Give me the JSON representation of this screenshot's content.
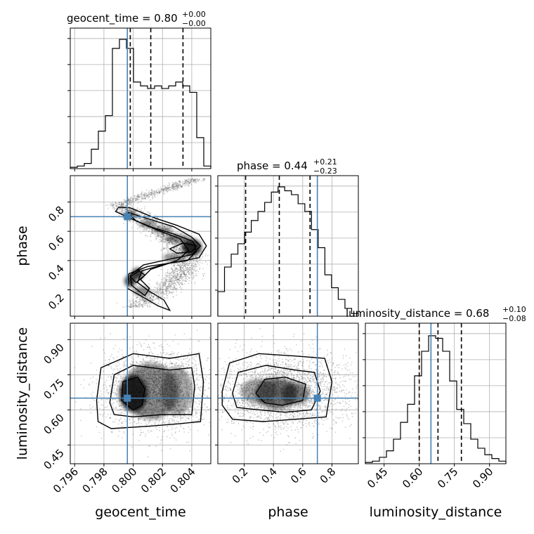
{
  "chart_data": {
    "type": "corner",
    "parameters": [
      "geocent_time",
      "phase",
      "luminosity_distance"
    ],
    "truth_color": "#4682b4",
    "grid": true,
    "truths": {
      "geocent_time": 0.7996,
      "phase": 0.7,
      "luminosity_distance": 0.65
    },
    "titles": {
      "geocent_time": {
        "name": "geocent_time",
        "median": "0.80",
        "plus": "+0.00",
        "minus": "−0.00"
      },
      "phase": {
        "name": "phase",
        "median": "0.44",
        "plus": "+0.21",
        "minus": "−0.23"
      },
      "luminosity_distance": {
        "name": "luminosity_distance",
        "median": "0.68",
        "plus": "+0.10",
        "minus": "−0.08"
      }
    },
    "axis_labels": {
      "x": [
        "geocent_time",
        "phase",
        "luminosity_distance"
      ],
      "y": [
        "phase",
        "luminosity_distance"
      ]
    },
    "ranges": {
      "geocent_time": [
        0.7957,
        0.8053
      ],
      "phase": [
        0.02,
        0.98
      ],
      "luminosity_distance": [
        0.37,
        0.97
      ]
    },
    "ticks": {
      "geocent_time": [
        {
          "v": 0.796,
          "label": "0.796"
        },
        {
          "v": 0.798,
          "label": "0.798"
        },
        {
          "v": 0.8,
          "label": "0.800"
        },
        {
          "v": 0.802,
          "label": "0.802"
        },
        {
          "v": 0.804,
          "label": "0.804"
        }
      ],
      "phase": [
        {
          "v": 0.2,
          "label": "0.2"
        },
        {
          "v": 0.4,
          "label": "0.4"
        },
        {
          "v": 0.6,
          "label": "0.6"
        },
        {
          "v": 0.8,
          "label": "0.8"
        }
      ],
      "luminosity_distance": [
        {
          "v": 0.45,
          "label": "0.45"
        },
        {
          "v": 0.6,
          "label": "0.60"
        },
        {
          "v": 0.75,
          "label": "0.75"
        },
        {
          "v": 0.9,
          "label": "0.90"
        }
      ]
    },
    "quantiles": {
      "geocent_time": [
        0.7998,
        0.8012,
        0.8034
      ],
      "phase": [
        0.21,
        0.44,
        0.65
      ],
      "luminosity_distance": [
        0.6,
        0.68,
        0.78
      ]
    },
    "histograms": {
      "geocent_time": [
        0.01,
        0.02,
        0.04,
        0.15,
        0.29,
        0.41,
        0.93,
        1.0,
        0.93,
        0.67,
        0.64,
        0.62,
        0.64,
        0.62,
        0.64,
        0.67,
        0.64,
        0.59,
        0.24,
        0.02
      ],
      "phase": [
        0.19,
        0.38,
        0.48,
        0.56,
        0.65,
        0.74,
        0.81,
        0.88,
        0.96,
        1.0,
        0.97,
        0.94,
        0.87,
        0.81,
        0.67,
        0.53,
        0.32,
        0.22,
        0.13,
        0.06,
        0.02
      ],
      "luminosity_distance": [
        0.01,
        0.02,
        0.05,
        0.1,
        0.19,
        0.32,
        0.46,
        0.68,
        0.87,
        0.99,
        0.97,
        0.87,
        0.64,
        0.42,
        0.31,
        0.19,
        0.12,
        0.07,
        0.04,
        0.02
      ]
    }
  }
}
